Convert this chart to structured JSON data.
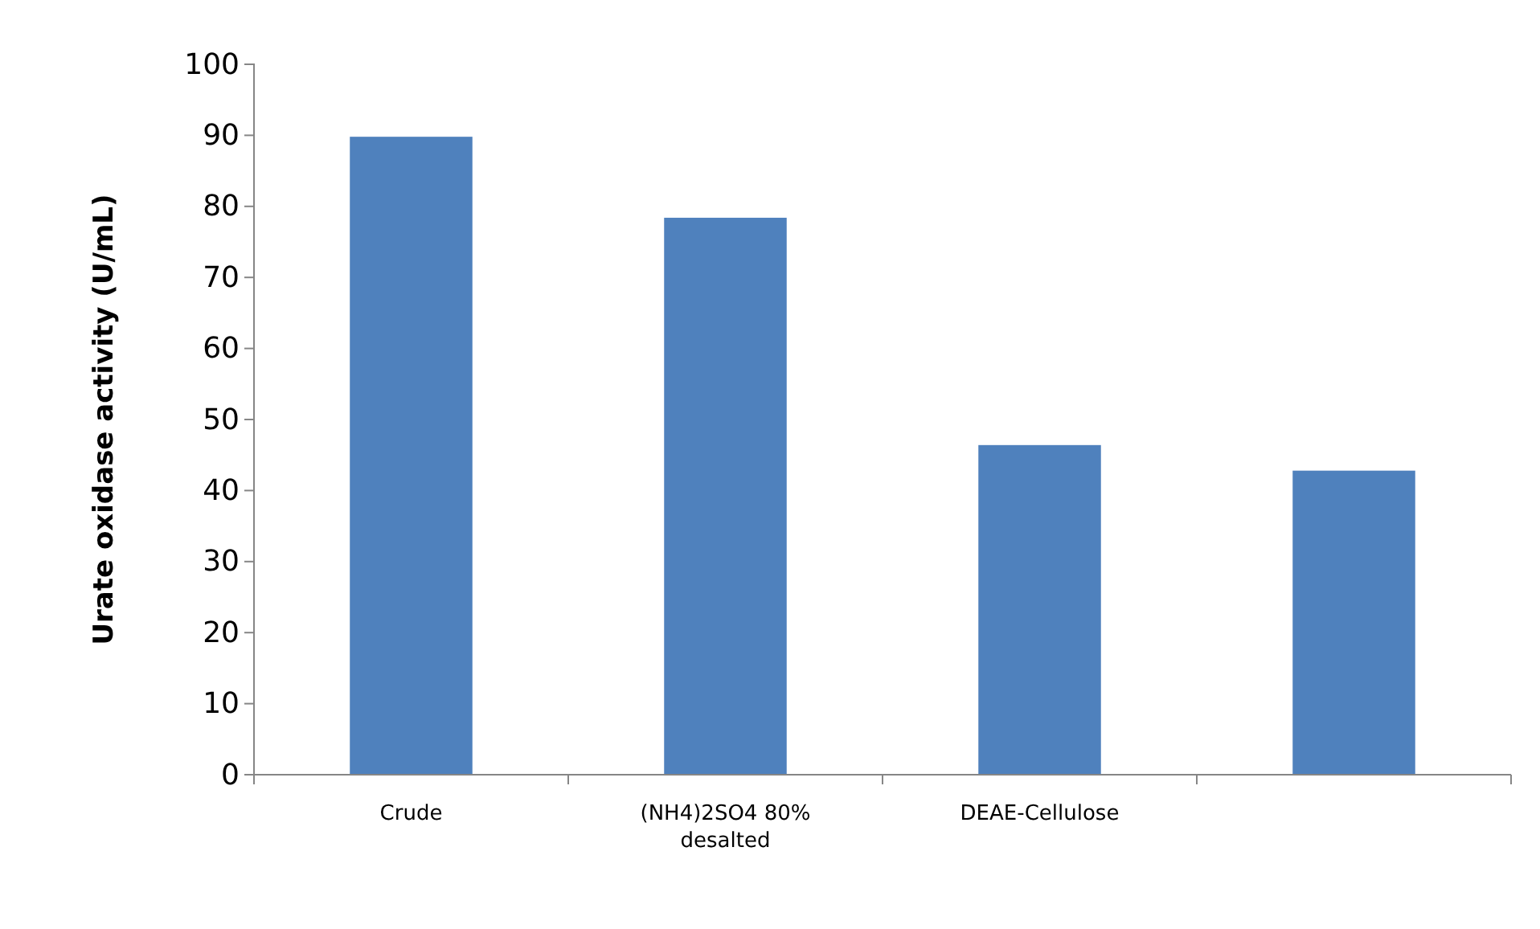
{
  "chart_data": {
    "type": "bar",
    "ylabel": "Urate oxidase activity (U/mL)",
    "categories": [
      "Crude",
      "(NH4)2SO4 80% desalted",
      "DEAE-Cellulose",
      null
    ],
    "values": [
      89.8,
      78.4,
      46.4,
      42.8
    ],
    "color": "#4f81bd",
    "ylim": [
      0,
      100
    ],
    "yticks": [
      0,
      10,
      20,
      30,
      40,
      50,
      60,
      70,
      80,
      90,
      100
    ],
    "grid": false
  }
}
